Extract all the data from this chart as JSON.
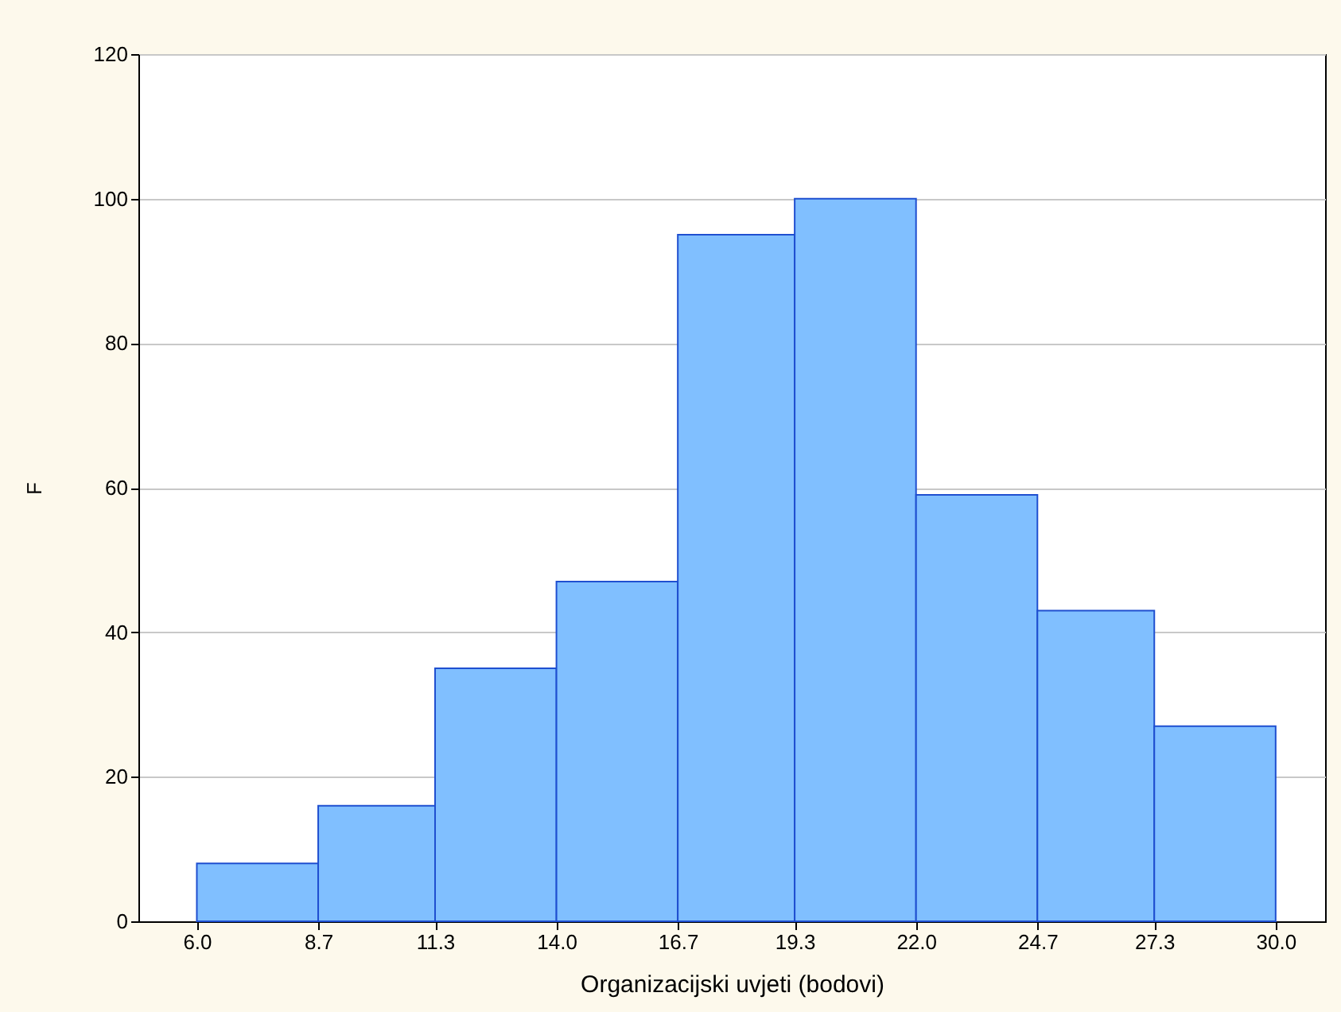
{
  "chart_data": {
    "type": "histogram",
    "xlabel": "Organizacijski uvjeti (bodovi)",
    "ylabel": "F",
    "bins": [
      6.0,
      8.7,
      11.3,
      14.0,
      16.7,
      19.3,
      22.0,
      24.7,
      27.3,
      30.0
    ],
    "values": [
      8,
      16,
      35,
      47,
      95,
      100,
      59,
      43,
      27
    ],
    "color": "#80bfff",
    "xlim": [
      4.7,
      31.1
    ],
    "xticks": [
      {
        "value": 6.0,
        "label": "6.0"
      },
      {
        "value": 8.7,
        "label": "8.7"
      },
      {
        "value": 11.3,
        "label": "11.3"
      },
      {
        "value": 14.0,
        "label": "14.0"
      },
      {
        "value": 16.7,
        "label": "16.7"
      },
      {
        "value": 19.3,
        "label": "19.3"
      },
      {
        "value": 22.0,
        "label": "22.0"
      },
      {
        "value": 24.7,
        "label": "24.7"
      },
      {
        "value": 27.3,
        "label": "27.3"
      },
      {
        "value": 30.0,
        "label": "30.0"
      }
    ],
    "ylim": [
      0,
      120
    ],
    "yticks": [
      0,
      20,
      40,
      60,
      80,
      100,
      120
    ],
    "grid": "y"
  }
}
